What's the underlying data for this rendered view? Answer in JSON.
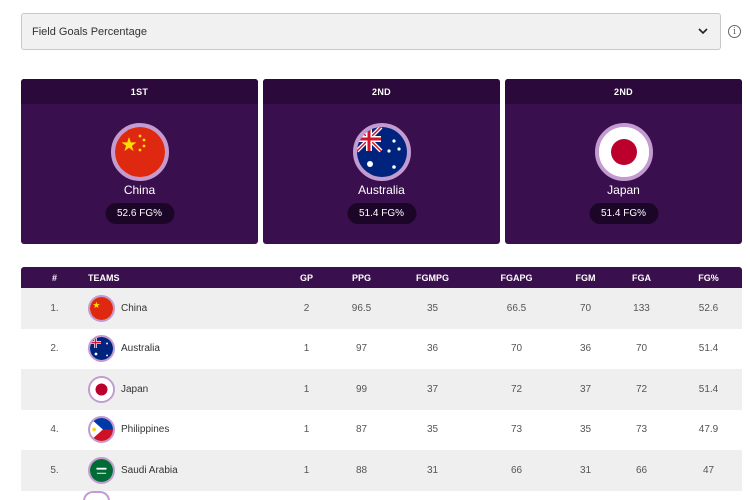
{
  "dropdown": {
    "selected": "Field Goals Percentage",
    "icon": "chevron-down-icon"
  },
  "info": {
    "icon": "info-icon",
    "glyph": "i"
  },
  "podium": [
    {
      "rank": "1ST",
      "country": "China",
      "flag": "china-flag-icon",
      "stat": "52.6 FG%"
    },
    {
      "rank": "2ND",
      "country": "Australia",
      "flag": "australia-flag-icon",
      "stat": "51.4 FG%"
    },
    {
      "rank": "2ND",
      "country": "Japan",
      "flag": "japan-flag-icon",
      "stat": "51.4 FG%"
    }
  ],
  "table": {
    "headers": {
      "num": "#",
      "team": "TEAMS",
      "gp": "GP",
      "ppg": "PPG",
      "fgmpg": "FGMPG",
      "fgapg": "FGAPG",
      "fgm": "FGM",
      "fga": "FGA",
      "fgp": "FG%"
    },
    "rows": [
      {
        "num": "1.",
        "team": "China",
        "flag": "china-flag-icon",
        "gp": "2",
        "ppg": "96.5",
        "fgmpg": "35",
        "fgapg": "66.5",
        "fgm": "70",
        "fga": "133",
        "fgp": "52.6"
      },
      {
        "num": "2.",
        "team": "Australia",
        "flag": "australia-flag-icon",
        "gp": "1",
        "ppg": "97",
        "fgmpg": "36",
        "fgapg": "70",
        "fgm": "36",
        "fga": "70",
        "fgp": "51.4"
      },
      {
        "num": "",
        "team": "Japan",
        "flag": "japan-flag-icon",
        "gp": "1",
        "ppg": "99",
        "fgmpg": "37",
        "fgapg": "72",
        "fgm": "37",
        "fga": "72",
        "fgp": "51.4"
      },
      {
        "num": "4.",
        "team": "Philippines",
        "flag": "philippines-flag-icon",
        "gp": "1",
        "ppg": "87",
        "fgmpg": "35",
        "fgapg": "73",
        "fgm": "35",
        "fga": "73",
        "fgp": "47.9"
      },
      {
        "num": "5.",
        "team": "Saudi Arabia",
        "flag": "saudi-arabia-flag-icon",
        "gp": "1",
        "ppg": "88",
        "fgmpg": "31",
        "fgapg": "66",
        "fgm": "31",
        "fga": "66",
        "fgp": "47"
      }
    ]
  },
  "colors": {
    "card_bg": "#3a0f4d",
    "card_header": "#2b0a3b",
    "ring": "#c39bd1",
    "row_alt": "#efefef"
  }
}
